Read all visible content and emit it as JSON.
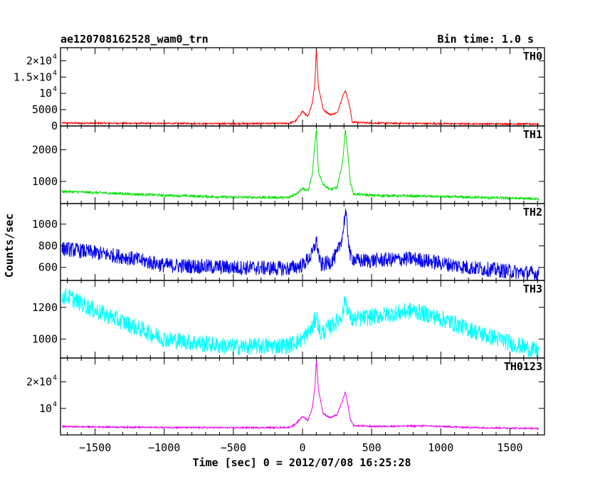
{
  "chart_data": {
    "type": "line",
    "title": "ae120708162528_wam0_trn",
    "bin_label": "Bin time: 1.0 s",
    "xlabel": "Time [sec] 0 = 2012/07/08 16:25:28",
    "ylabel": "Counts/sec",
    "xlim": [
      -1750,
      1750
    ],
    "x_ticks": [
      {
        "value": -1500,
        "label": "−1500"
      },
      {
        "value": -1000,
        "label": "−1000"
      },
      {
        "value": -500,
        "label": "−500"
      },
      {
        "value": 0,
        "label": "0"
      },
      {
        "value": 500,
        "label": "500"
      },
      {
        "value": 1000,
        "label": "1000"
      },
      {
        "value": 1500,
        "label": "1500"
      }
    ],
    "grid": false,
    "panels": [
      {
        "name": "TH0",
        "color": "#ff0000",
        "ylim": [
          0,
          24000
        ],
        "y_ticks": [
          {
            "value": 0,
            "label": "0"
          },
          {
            "value": 5000,
            "label": "5000"
          },
          {
            "value": 10000,
            "label": "10",
            "exp": "4"
          },
          {
            "value": 15000,
            "label": "1.5×10",
            "exp": "4"
          },
          {
            "value": 20000,
            "label": "2×10",
            "exp": "4"
          }
        ],
        "profile": {
          "points": [
            [
              -1700,
              900
            ],
            [
              -500,
              700
            ],
            [
              -100,
              800
            ],
            [
              -50,
              1500
            ],
            [
              0,
              4500
            ],
            [
              40,
              2800
            ],
            [
              70,
              7000
            ],
            [
              90,
              13000
            ],
            [
              100,
              24000
            ],
            [
              115,
              12000
            ],
            [
              150,
              5000
            ],
            [
              200,
              3500
            ],
            [
              250,
              4000
            ],
            [
              290,
              9000
            ],
            [
              310,
              11000
            ],
            [
              330,
              8000
            ],
            [
              345,
              5000
            ],
            [
              360,
              1200
            ],
            [
              500,
              900
            ],
            [
              1000,
              700
            ],
            [
              1710,
              600
            ]
          ],
          "noise": 250
        }
      },
      {
        "name": "TH1",
        "color": "#00e000",
        "ylim": [
          300,
          2750
        ],
        "y_ticks": [
          {
            "value": 1000,
            "label": "1000"
          },
          {
            "value": 2000,
            "label": "2000"
          }
        ],
        "profile": {
          "points": [
            [
              -1700,
              680
            ],
            [
              -1000,
              560
            ],
            [
              -500,
              500
            ],
            [
              -100,
              490
            ],
            [
              -50,
              600
            ],
            [
              0,
              780
            ],
            [
              40,
              700
            ],
            [
              70,
              1200
            ],
            [
              100,
              2650
            ],
            [
              115,
              1300
            ],
            [
              150,
              900
            ],
            [
              200,
              750
            ],
            [
              250,
              800
            ],
            [
              290,
              1600
            ],
            [
              310,
              2650
            ],
            [
              330,
              1800
            ],
            [
              345,
              1000
            ],
            [
              370,
              600
            ],
            [
              500,
              560
            ],
            [
              1000,
              520
            ],
            [
              1710,
              450
            ]
          ],
          "noise": 40
        }
      },
      {
        "name": "TH2",
        "color": "#0000ee",
        "ylim": [
          480,
          1190
        ],
        "y_ticks": [
          {
            "value": 600,
            "label": "600"
          },
          {
            "value": 800,
            "label": "800"
          },
          {
            "value": 1000,
            "label": "1000"
          }
        ],
        "profile": {
          "points": [
            [
              -1700,
              770
            ],
            [
              -1300,
              700
            ],
            [
              -1000,
              620
            ],
            [
              -500,
              600
            ],
            [
              -100,
              590
            ],
            [
              0,
              620
            ],
            [
              70,
              720
            ],
            [
              100,
              850
            ],
            [
              130,
              620
            ],
            [
              200,
              650
            ],
            [
              250,
              720
            ],
            [
              290,
              900
            ],
            [
              310,
              1120
            ],
            [
              330,
              900
            ],
            [
              345,
              700
            ],
            [
              400,
              660
            ],
            [
              800,
              680
            ],
            [
              1200,
              600
            ],
            [
              1710,
              540
            ]
          ],
          "noise": 70
        }
      },
      {
        "name": "TH3",
        "color": "#00ffff",
        "ylim": [
          880,
          1370
        ],
        "y_ticks": [
          {
            "value": 1000,
            "label": "1000"
          },
          {
            "value": 1200,
            "label": "1200"
          }
        ],
        "profile": {
          "points": [
            [
              -1700,
              1270
            ],
            [
              -1500,
              1180
            ],
            [
              -1000,
              1000
            ],
            [
              -500,
              950
            ],
            [
              -100,
              960
            ],
            [
              0,
              1000
            ],
            [
              70,
              1070
            ],
            [
              100,
              1150
            ],
            [
              130,
              1030
            ],
            [
              200,
              1080
            ],
            [
              250,
              1110
            ],
            [
              290,
              1160
            ],
            [
              310,
              1260
            ],
            [
              330,
              1170
            ],
            [
              360,
              1120
            ],
            [
              500,
              1140
            ],
            [
              800,
              1180
            ],
            [
              1000,
              1130
            ],
            [
              1300,
              1030
            ],
            [
              1710,
              920
            ]
          ],
          "noise": 55
        }
      },
      {
        "name": "TH0123",
        "color": "#ee00ee",
        "ylim": [
          0,
          29000
        ],
        "y_ticks": [
          {
            "value": 10000,
            "label": "10",
            "exp": "4"
          },
          {
            "value": 20000,
            "label": "2×10",
            "exp": "4"
          }
        ],
        "profile": {
          "points": [
            [
              -1700,
              3100
            ],
            [
              -1000,
              2800
            ],
            [
              -500,
              2700
            ],
            [
              -100,
              2800
            ],
            [
              -50,
              4000
            ],
            [
              0,
              7000
            ],
            [
              40,
              5500
            ],
            [
              70,
              10000
            ],
            [
              90,
              18000
            ],
            [
              100,
              28500
            ],
            [
              115,
              17000
            ],
            [
              150,
              8000
            ],
            [
              200,
              6500
            ],
            [
              250,
              7500
            ],
            [
              290,
              13000
            ],
            [
              310,
              16000
            ],
            [
              330,
              11000
            ],
            [
              345,
              6000
            ],
            [
              370,
              3500
            ],
            [
              500,
              3200
            ],
            [
              900,
              3400
            ],
            [
              1200,
              2800
            ],
            [
              1710,
              2400
            ]
          ],
          "noise": 300
        }
      }
    ]
  }
}
